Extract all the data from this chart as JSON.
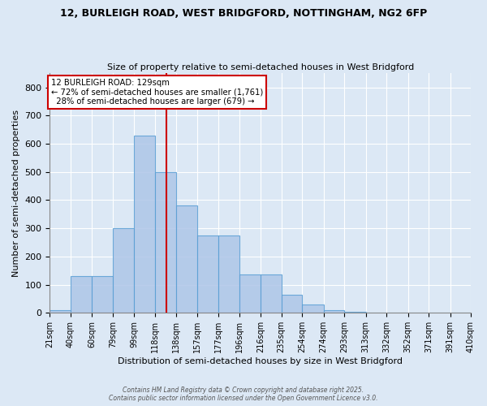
{
  "title1": "12, BURLEIGH ROAD, WEST BRIDGFORD, NOTTINGHAM, NG2 6FP",
  "title2": "Size of property relative to semi-detached houses in West Bridgford",
  "xlabel": "Distribution of semi-detached houses by size in West Bridgford",
  "ylabel": "Number of semi-detached properties",
  "smaller_pct": 72,
  "smaller_count": 1761,
  "larger_pct": 28,
  "larger_count": 679,
  "bin_edges": [
    21,
    40,
    60,
    79,
    99,
    118,
    138,
    157,
    177,
    196,
    216,
    235,
    254,
    274,
    293,
    313,
    332,
    352,
    371,
    391,
    410
  ],
  "bar_heights": [
    10,
    130,
    130,
    300,
    630,
    500,
    380,
    275,
    275,
    135,
    135,
    65,
    30,
    10,
    5,
    0,
    0,
    0,
    0,
    0
  ],
  "bar_color": "#aec6e8",
  "bar_edge_color": "#5a9fd4",
  "vline_color": "#cc0000",
  "vline_x": 129,
  "background_color": "#dce8f5",
  "grid_color": "#ffffff",
  "ylim": [
    0,
    850
  ],
  "yticks": [
    0,
    100,
    200,
    300,
    400,
    500,
    600,
    700,
    800
  ],
  "tick_labels": [
    "21sqm",
    "40sqm",
    "60sqm",
    "79sqm",
    "99sqm",
    "118sqm",
    "138sqm",
    "157sqm",
    "177sqm",
    "196sqm",
    "216sqm",
    "235sqm",
    "254sqm",
    "274sqm",
    "293sqm",
    "313sqm",
    "332sqm",
    "352sqm",
    "371sqm",
    "391sqm",
    "410sqm"
  ],
  "footer": "Contains HM Land Registry data © Crown copyright and database right 2025.\nContains public sector information licensed under the Open Government Licence v3.0."
}
